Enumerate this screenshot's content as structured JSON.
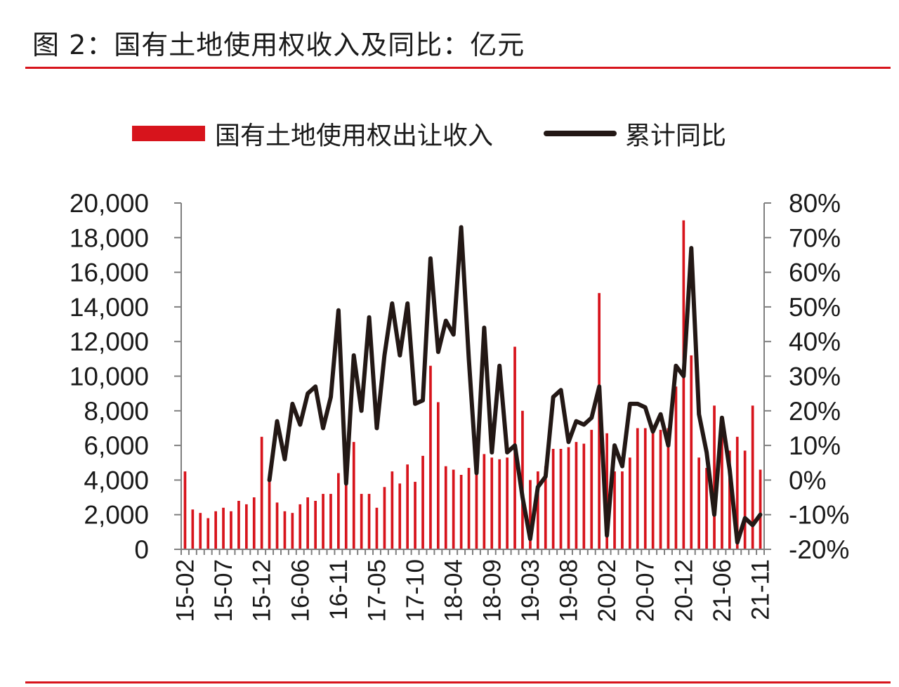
{
  "header": {
    "title": "图 2：国有土地使用权收入及同比：亿元"
  },
  "colors": {
    "accent": "#d7141c",
    "line": "#231815",
    "axis": "#7f7f7f"
  },
  "legend": {
    "bar_label": "国有土地使用权出让收入",
    "line_label": "累计同比"
  },
  "chart_data": {
    "type": "bar",
    "title": "",
    "xlabel": "",
    "ylabel": "",
    "ylim": [
      0,
      20000
    ],
    "y2lim": [
      -0.2,
      0.8
    ],
    "grid": false,
    "legend_position": "top",
    "yticks": [
      "0",
      "2,000",
      "4,000",
      "6,000",
      "8,000",
      "10,000",
      "12,000",
      "14,000",
      "16,000",
      "18,000",
      "20,000"
    ],
    "y2ticks": [
      "-20%",
      "-10%",
      "0%",
      "10%",
      "20%",
      "30%",
      "40%",
      "50%",
      "60%",
      "70%",
      "80%"
    ],
    "xticks": [
      "15-02",
      "15-07",
      "15-12",
      "16-06",
      "16-11",
      "17-05",
      "17-10",
      "18-04",
      "18-09",
      "19-03",
      "19-08",
      "20-02",
      "20-07",
      "20-12",
      "21-06",
      "21-11"
    ],
    "categories": [
      "15-02",
      "15-03",
      "15-04",
      "15-05",
      "15-06",
      "15-07",
      "15-08",
      "15-09",
      "15-10",
      "15-11",
      "15-12",
      "16-02",
      "16-03",
      "16-04",
      "16-05",
      "16-06",
      "16-07",
      "16-08",
      "16-09",
      "16-10",
      "16-11",
      "16-12",
      "17-02",
      "17-03",
      "17-04",
      "17-05",
      "17-06",
      "17-07",
      "17-08",
      "17-09",
      "17-10",
      "17-11",
      "17-12",
      "18-02",
      "18-03",
      "18-04",
      "18-05",
      "18-06",
      "18-07",
      "18-08",
      "18-09",
      "18-10",
      "18-11",
      "18-12",
      "19-02",
      "19-03",
      "19-04",
      "19-05",
      "19-06",
      "19-07",
      "19-08",
      "19-09",
      "19-10",
      "19-11",
      "19-12",
      "20-02",
      "20-03",
      "20-04",
      "20-05",
      "20-06",
      "20-07",
      "20-08",
      "20-09",
      "20-10",
      "20-11",
      "20-12",
      "21-02",
      "21-03",
      "21-04",
      "21-05",
      "21-06",
      "21-07",
      "21-08",
      "21-09",
      "21-10",
      "21-11"
    ],
    "series": [
      {
        "name": "国有土地使用权出让收入",
        "type": "bar",
        "values": [
          4500,
          2300,
          2100,
          1800,
          2200,
          2400,
          2200,
          2800,
          2600,
          3000,
          6500,
          4000,
          2700,
          2200,
          2100,
          2600,
          3000,
          2800,
          3200,
          3200,
          4400,
          3800,
          6200,
          3200,
          3200,
          2400,
          3600,
          4500,
          3800,
          4900,
          3900,
          5400,
          10600,
          8500,
          4800,
          4600,
          4300,
          4700,
          4900,
          5500,
          5300,
          5200,
          5300,
          11700,
          8000,
          4000,
          4500,
          4800,
          5800,
          5800,
          5900,
          6200,
          6100,
          6900,
          14800,
          6700,
          4500,
          4500,
          5300,
          7000,
          7000,
          6700,
          6900,
          7000,
          9400,
          19000,
          11200,
          5300,
          4700,
          8300,
          7000,
          5700,
          6500,
          5700,
          8300,
          4600
        ]
      },
      {
        "name": "累计同比",
        "type": "line",
        "axis": "right",
        "values": [
          null,
          null,
          null,
          null,
          null,
          null,
          null,
          null,
          null,
          null,
          null,
          0.0,
          0.17,
          0.06,
          0.22,
          0.16,
          0.25,
          0.27,
          0.15,
          0.24,
          0.49,
          -0.01,
          0.36,
          0.2,
          0.47,
          0.15,
          0.36,
          0.51,
          0.36,
          0.51,
          0.22,
          0.23,
          0.64,
          0.37,
          0.46,
          0.42,
          0.73,
          0.35,
          0.02,
          0.44,
          0.08,
          0.33,
          0.08,
          0.1,
          -0.05,
          -0.17,
          -0.02,
          0.01,
          0.24,
          0.26,
          0.11,
          0.17,
          0.16,
          0.18,
          0.27,
          -0.16,
          0.1,
          0.04,
          0.22,
          0.22,
          0.21,
          0.14,
          0.19,
          0.1,
          0.33,
          0.3,
          0.67,
          0.19,
          0.08,
          -0.1,
          0.18,
          0.03,
          -0.18,
          -0.11,
          -0.13,
          -0.1
        ]
      }
    ]
  }
}
